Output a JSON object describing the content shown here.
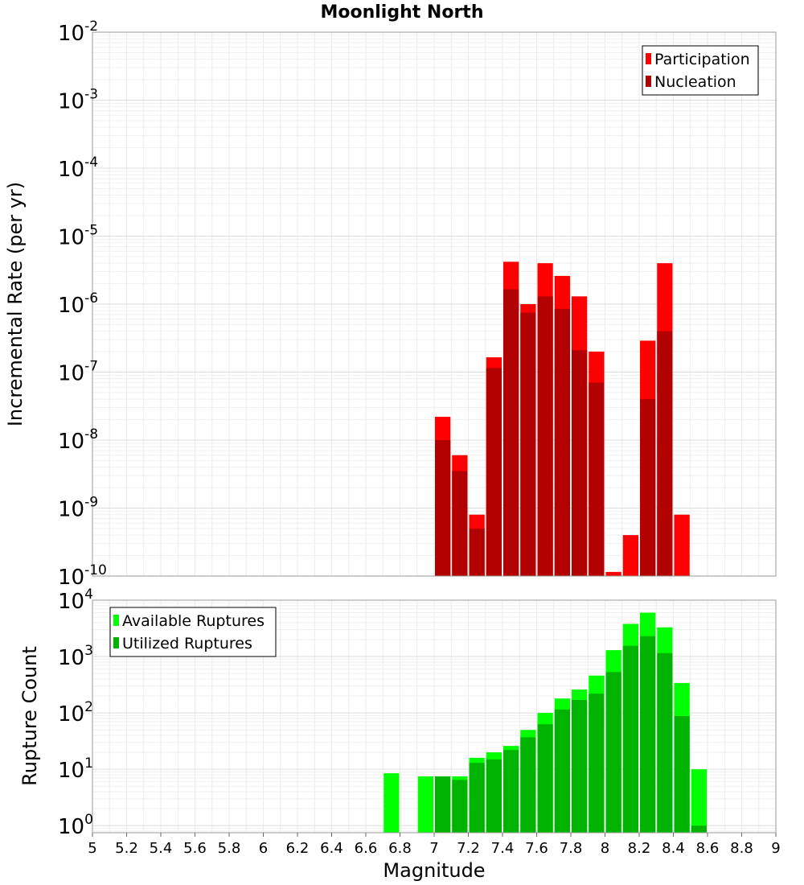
{
  "chart_data": [
    {
      "type": "bar",
      "title": "Moonlight North",
      "ylabel": "Incremental Rate (per yr)",
      "xlim": [
        5,
        9
      ],
      "ylim": [
        1e-10,
        0.01
      ],
      "yscale": "log",
      "grid": true,
      "legend_position": "top-right",
      "bin_width": 0.1,
      "ytick_exponents": [
        "-10",
        "-9",
        "-8",
        "-7",
        "-6",
        "-5",
        "-4",
        "-3",
        "-2"
      ],
      "series": [
        {
          "name": "Participation",
          "color": "#ff0000",
          "x": [
            7.0,
            7.1,
            7.2,
            7.3,
            7.4,
            7.5,
            7.6,
            7.7,
            7.8,
            7.9,
            8.0,
            8.1,
            8.2,
            8.3,
            8.4
          ],
          "values": [
            2.2e-08,
            6e-09,
            8e-10,
            1.65e-07,
            4.2e-06,
            1e-06,
            4e-06,
            2.6e-06,
            1.3e-06,
            2e-07,
            1.15e-10,
            4e-10,
            2.9e-07,
            4e-06,
            8e-10
          ]
        },
        {
          "name": "Nucleation",
          "color": "#b30000",
          "x": [
            7.0,
            7.1,
            7.2,
            7.3,
            7.4,
            7.5,
            7.6,
            7.7,
            7.8,
            7.9,
            8.2,
            8.3
          ],
          "values": [
            1e-08,
            3.5e-09,
            5e-10,
            1.15e-07,
            1.65e-06,
            7.5e-07,
            1.3e-06,
            8.5e-07,
            2.1e-07,
            7e-08,
            4e-08,
            4e-07
          ]
        }
      ]
    },
    {
      "type": "bar",
      "xlabel": "Magnitude",
      "ylabel": "Rupture Count",
      "xlim": [
        5,
        9
      ],
      "ylim": [
        0.75,
        10000
      ],
      "yscale": "log",
      "grid": true,
      "legend_position": "top-left",
      "bin_width": 0.1,
      "ytick_exponents": [
        "0",
        "1",
        "2",
        "3",
        "4"
      ],
      "xticks": [
        "5",
        "5.2",
        "5.4",
        "5.6",
        "5.8",
        "6",
        "6.2",
        "6.4",
        "6.6",
        "6.8",
        "7",
        "7.2",
        "7.4",
        "7.6",
        "7.8",
        "8",
        "8.2",
        "8.4",
        "8.6",
        "8.8",
        "9"
      ],
      "series": [
        {
          "name": "Available Ruptures",
          "color": "#00ff00",
          "x": [
            6.7,
            6.9,
            7.0,
            7.1,
            7.2,
            7.3,
            7.4,
            7.5,
            7.6,
            7.7,
            7.8,
            7.9,
            8.0,
            8.1,
            8.2,
            8.3,
            8.4,
            8.5
          ],
          "values": [
            8.5,
            7.5,
            7.5,
            7.5,
            16,
            20,
            26,
            50,
            100,
            180,
            260,
            460,
            1300,
            3800,
            6000,
            3300,
            340,
            10
          ]
        },
        {
          "name": "Utilized Ruptures",
          "color": "#00b300",
          "x": [
            7.0,
            7.1,
            7.2,
            7.3,
            7.4,
            7.5,
            7.6,
            7.7,
            7.8,
            7.9,
            8.0,
            8.1,
            8.2,
            8.3,
            8.4,
            8.5
          ],
          "values": [
            7.5,
            6.5,
            13,
            15,
            22,
            37,
            63,
            115,
            170,
            220,
            530,
            1550,
            2300,
            1150,
            88,
            1
          ]
        }
      ]
    }
  ]
}
